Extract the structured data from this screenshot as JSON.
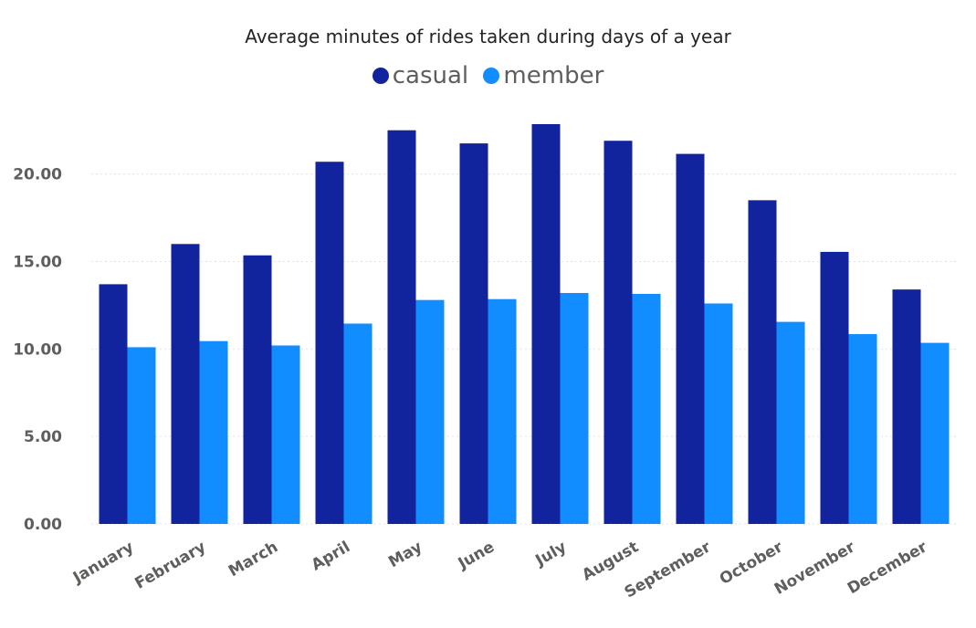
{
  "chart_data": {
    "type": "bar",
    "title": "Average minutes of rides taken during days of a year",
    "xlabel": "",
    "ylabel": "",
    "categories": [
      "January",
      "February",
      "March",
      "April",
      "May",
      "June",
      "July",
      "August",
      "September",
      "October",
      "November",
      "December"
    ],
    "series": [
      {
        "name": "casual",
        "color": "#12239e",
        "values": [
          13.7,
          16.0,
          15.35,
          20.7,
          22.5,
          21.75,
          22.85,
          21.9,
          21.15,
          18.5,
          15.55,
          13.4
        ]
      },
      {
        "name": "member",
        "color": "#118dff",
        "values": [
          10.1,
          10.45,
          10.2,
          11.45,
          12.8,
          12.85,
          13.2,
          13.15,
          12.6,
          11.55,
          10.85,
          10.35
        ]
      }
    ],
    "ylim": [
      0,
      22.85
    ],
    "yticks": [
      "0.00",
      "5.00",
      "10.00",
      "15.00",
      "20.00"
    ],
    "ytick_values": [
      0,
      5,
      10,
      15,
      20
    ],
    "grid": true,
    "legend_position": "top-center"
  }
}
